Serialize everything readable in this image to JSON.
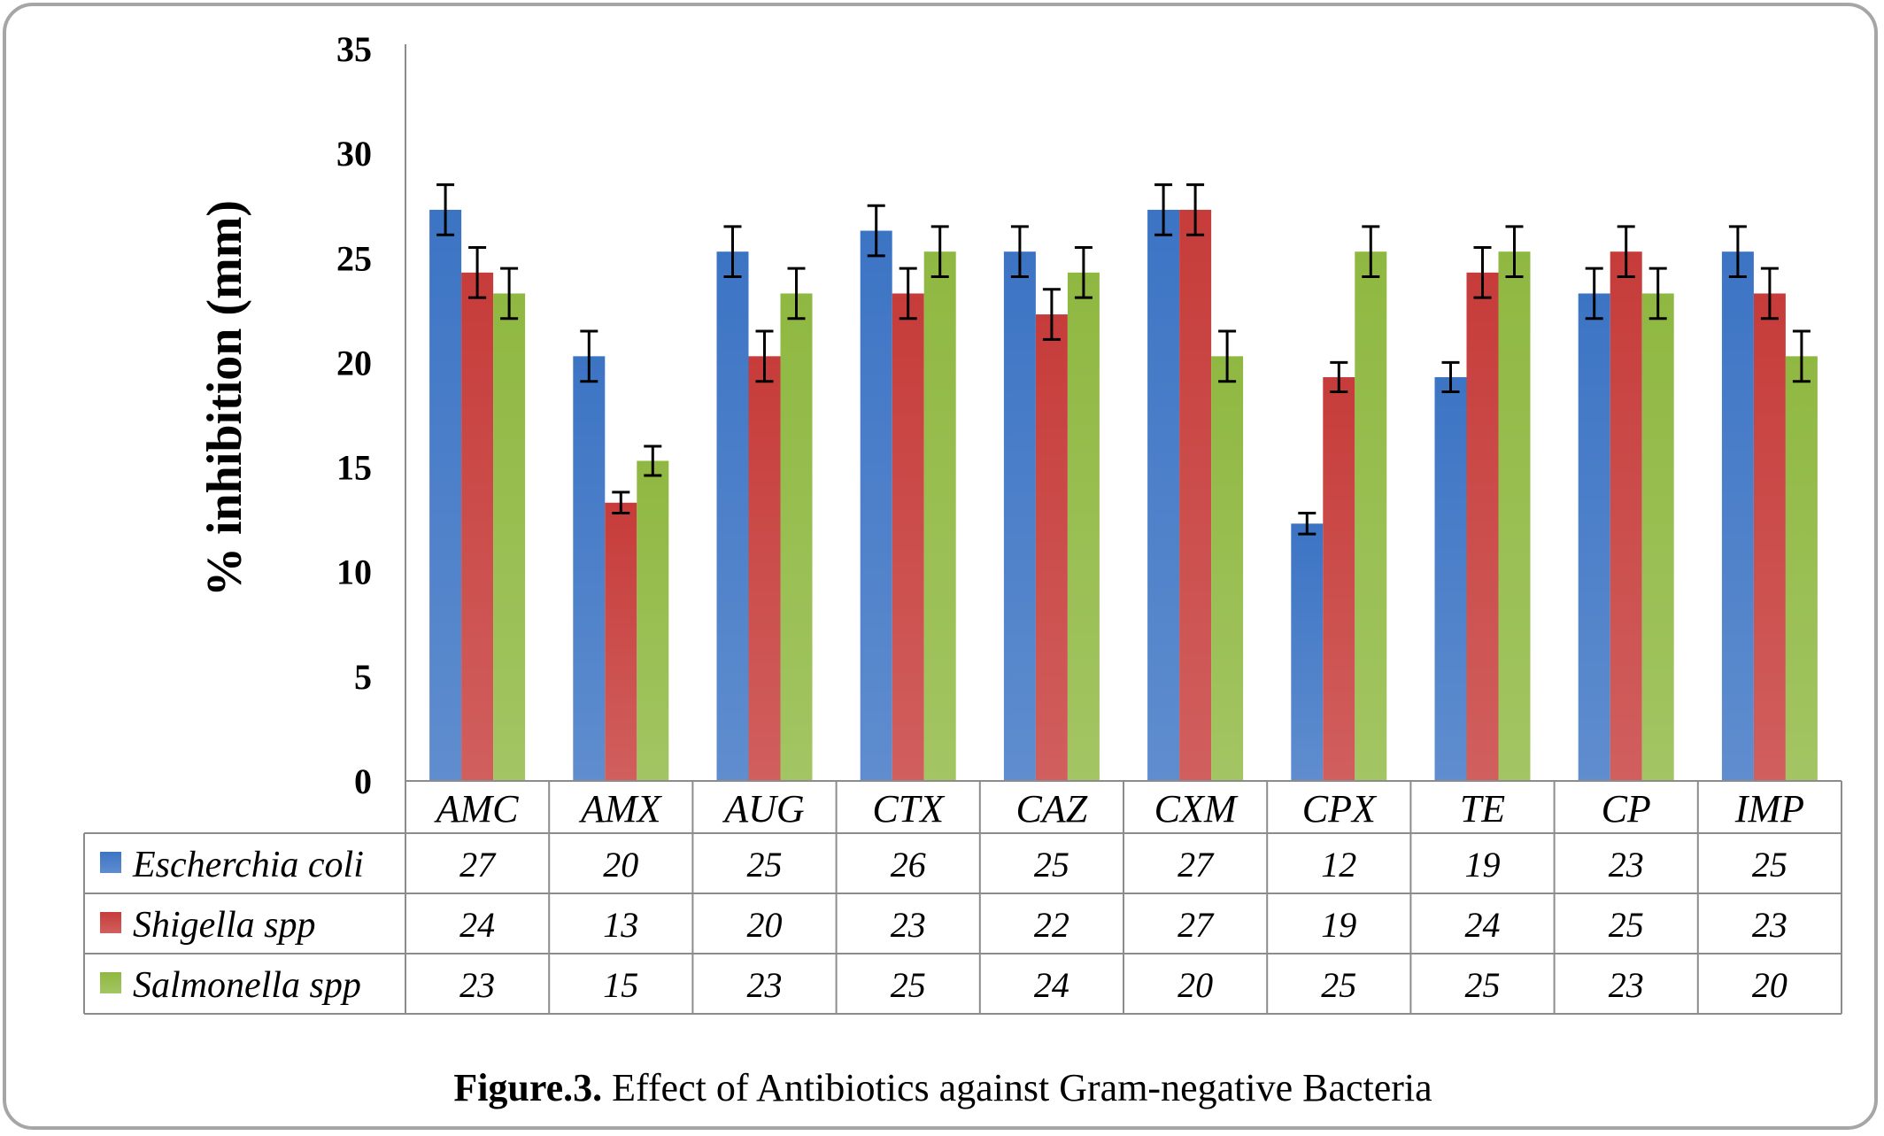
{
  "chart_data": {
    "type": "bar",
    "ylabel": "% inhibition (mm)",
    "ylim": [
      0,
      35
    ],
    "yticks": [
      0,
      5,
      10,
      15,
      20,
      25,
      30,
      35
    ],
    "categories": [
      "AMC",
      "AMX",
      "AUG",
      "CTX",
      "CAZ",
      "CXM",
      "CPX",
      "TE",
      "CP",
      "IMP"
    ],
    "series": [
      {
        "name": "Escherchia coli",
        "color": "#3c74c4",
        "values": [
          27,
          20,
          25,
          26,
          25,
          27,
          12,
          19,
          23,
          25
        ]
      },
      {
        "name": "Shigella spp",
        "color": "#c63c3a",
        "values": [
          24,
          13,
          20,
          23,
          22,
          27,
          19,
          24,
          25,
          23
        ]
      },
      {
        "name": "Salmonella spp",
        "color": "#8fb841",
        "values": [
          23,
          15,
          23,
          25,
          24,
          20,
          25,
          25,
          23,
          20
        ]
      }
    ],
    "error_bars": true,
    "grid": false,
    "legend": "data-table"
  },
  "caption": {
    "label": "Figure.3.",
    "text": " Effect of Antibiotics against Gram-negative Bacteria"
  }
}
